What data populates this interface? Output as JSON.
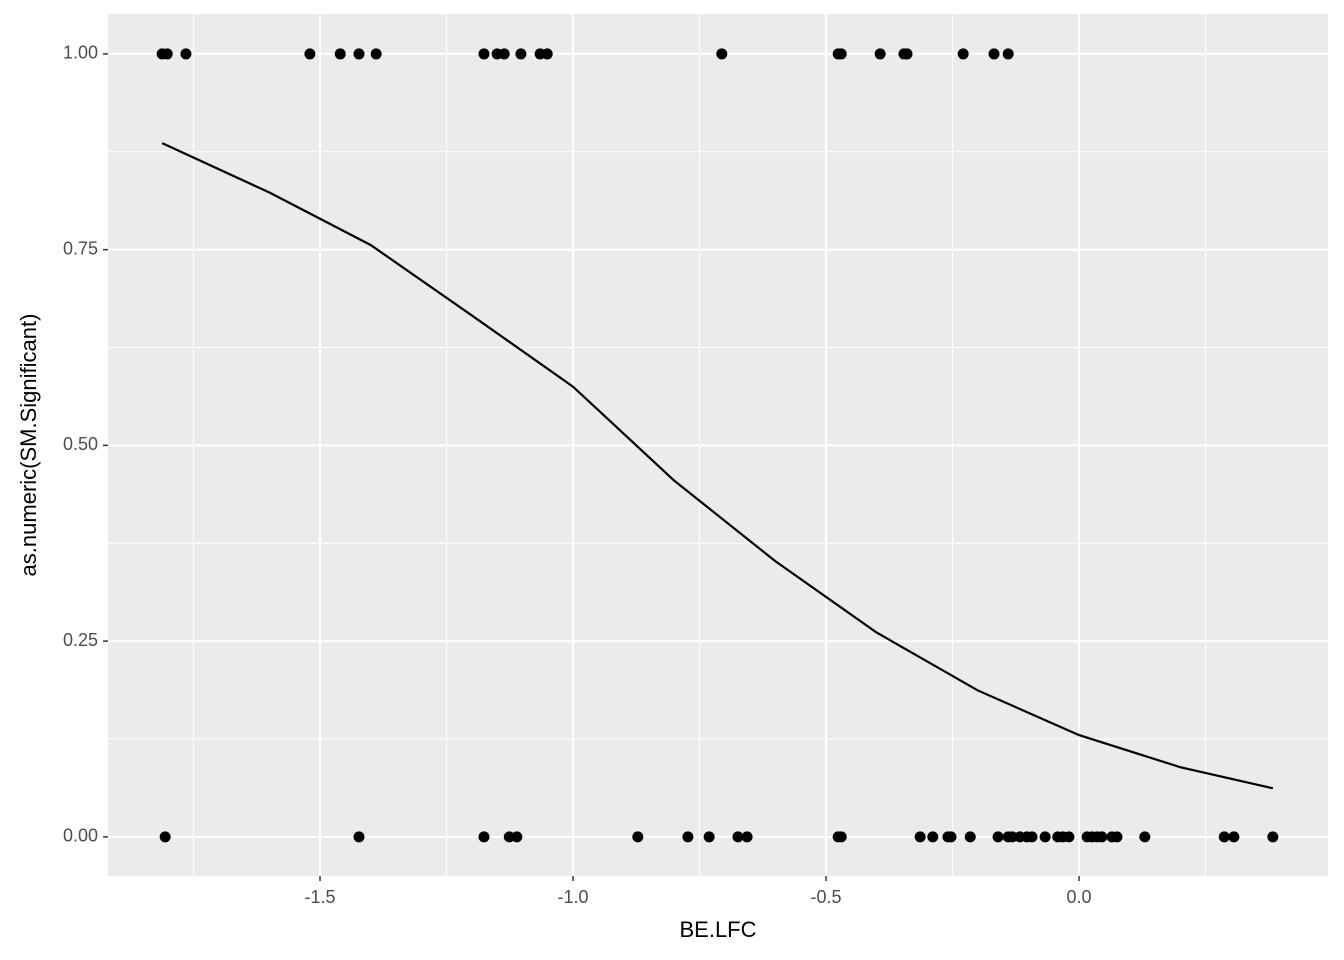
{
  "chart_data": {
    "type": "scatter",
    "x_label": "BE.LFC",
    "y_label": "as.numeric(SM.Significant)",
    "xlim": [
      -1.919,
      0.492
    ],
    "ylim": [
      -0.05,
      1.051
    ],
    "xticks": [
      -1.5,
      {
        "value": -1,
        "label": "-1.0"
      },
      {
        "value": -0.5,
        "label": "-0.5"
      },
      {
        "value": 0,
        "label": "0.0"
      }
    ],
    "yticks": [
      {
        "value": 0,
        "label": "0.00"
      },
      0.25,
      {
        "value": 0.5,
        "label": "0.50"
      },
      0.75,
      {
        "value": 1,
        "label": "1.00"
      }
    ],
    "xminorticks": [
      -1.75,
      -1.25,
      -0.75,
      -0.25,
      0.25
    ],
    "yminorticks": [
      0.125,
      0.375,
      0.625,
      0.875
    ],
    "grid": true,
    "series": [
      {
        "type": "scatter",
        "color": "#000000",
        "x": [
          -1.812,
          -1.802,
          -1.765,
          -1.52,
          -1.46,
          -1.423,
          -1.389,
          -1.176,
          -1.15,
          -1.136,
          -1.103,
          -1.065,
          -1.051,
          -0.706,
          -0.476,
          -0.47,
          -0.393,
          -0.346,
          -0.34,
          -0.229,
          -0.168,
          -0.14,
          -1.806,
          -1.423,
          -1.176,
          -1.126,
          -1.111,
          -0.872,
          -0.773,
          -0.731,
          -0.674,
          -0.656,
          -0.476,
          -0.47,
          -0.314,
          -0.289,
          -0.259,
          -0.253,
          -0.215,
          -0.16,
          -0.14,
          -0.132,
          -0.117,
          -0.103,
          -0.093,
          -0.067,
          -0.042,
          -0.032,
          -0.02,
          0.016,
          0.026,
          0.036,
          0.045,
          0.065,
          0.075,
          0.13,
          0.287,
          0.306,
          0.383
        ],
        "values": [
          1,
          1,
          1,
          1,
          1,
          1,
          1,
          1,
          1,
          1,
          1,
          1,
          1,
          1,
          1,
          1,
          1,
          1,
          1,
          1,
          1,
          1,
          0,
          0,
          0,
          0,
          0,
          0,
          0,
          0,
          0,
          0,
          0,
          0,
          0,
          0,
          0,
          0,
          0,
          0,
          0,
          0,
          0,
          0,
          0,
          0,
          0,
          0,
          0,
          0,
          0,
          0,
          0,
          0,
          0,
          0,
          0,
          0,
          0
        ]
      },
      {
        "type": "line",
        "color": "#000000",
        "x": [
          -1.812,
          -1.6,
          -1.4,
          -1.2,
          -1.0,
          -0.8,
          -0.6,
          -0.4,
          -0.2,
          0.0,
          0.2,
          0.383
        ],
        "values": [
          0.886,
          0.823,
          0.756,
          0.666,
          0.575,
          0.455,
          0.352,
          0.261,
          0.187,
          0.13,
          0.089,
          0.062
        ]
      }
    ]
  }
}
